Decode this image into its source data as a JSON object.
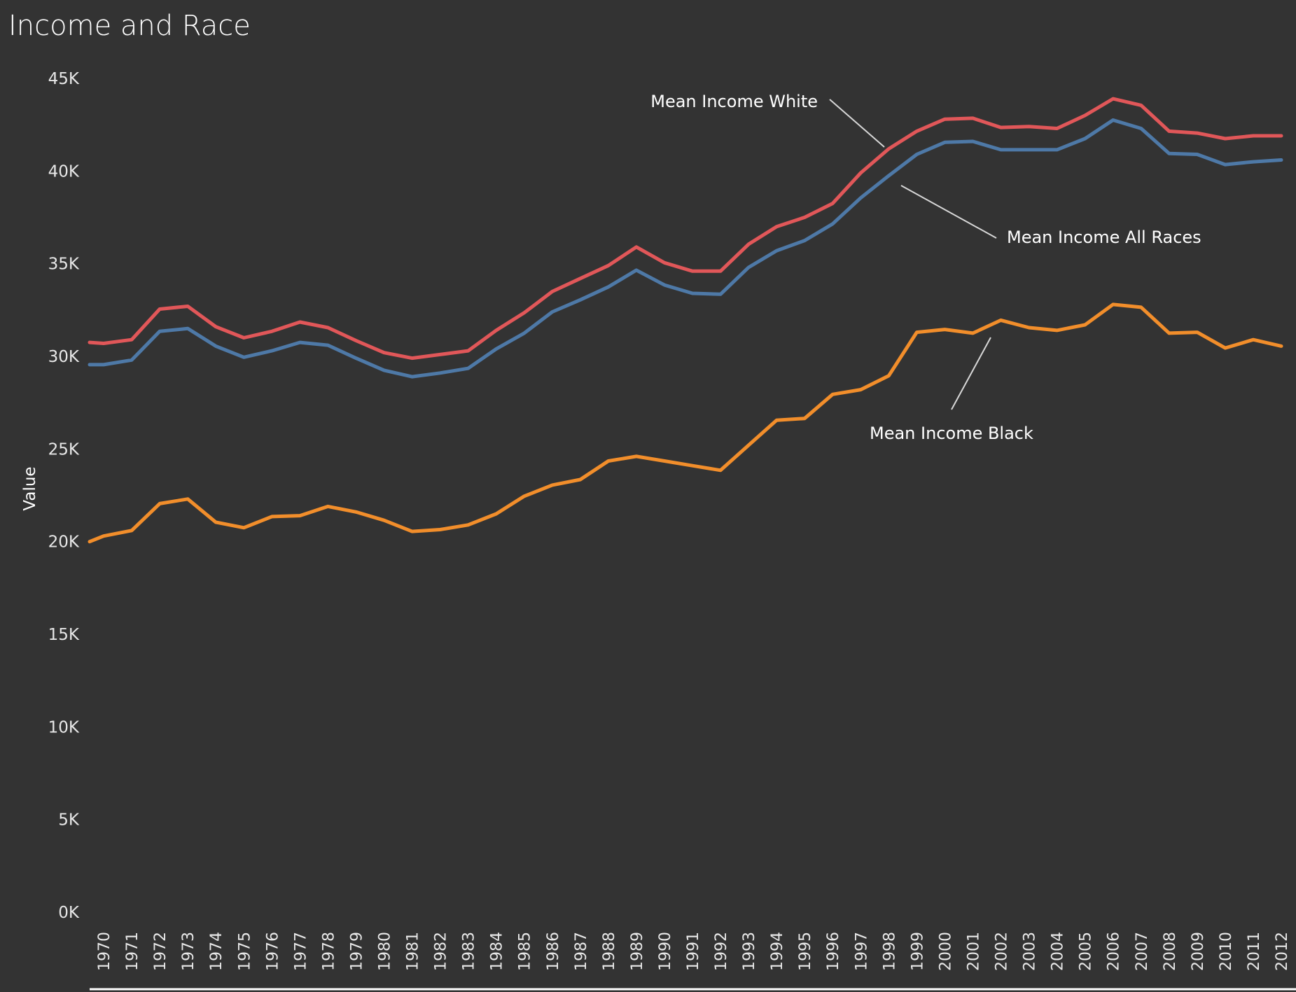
{
  "chart_data": {
    "type": "line",
    "title": "Income and Race",
    "xlabel": "",
    "ylabel": "Value",
    "ylim": [
      0,
      45000
    ],
    "yticks": [
      0,
      5000,
      10000,
      15000,
      20000,
      25000,
      30000,
      35000,
      40000,
      45000
    ],
    "ytick_labels": [
      "0K",
      "5K",
      "10K",
      "15K",
      "20K",
      "25K",
      "30K",
      "35K",
      "40K",
      "45K"
    ],
    "x_tick_labels": [
      "1970",
      "1971",
      "1972",
      "1973",
      "1974",
      "1975",
      "1976",
      "1977",
      "1978",
      "1979",
      "1980",
      "1981",
      "1982",
      "1983",
      "1984",
      "1985",
      "1986",
      "1987",
      "1988",
      "1989",
      "1990",
      "1991",
      "1992",
      "1993",
      "1994",
      "1995",
      "1996",
      "1997",
      "1998",
      "1999",
      "2000",
      "2001",
      "2002",
      "2003",
      "2004",
      "2005",
      "2006",
      "2007",
      "2008",
      "2009",
      "2010",
      "2011",
      "2012"
    ],
    "grid": false,
    "series": [
      {
        "name": "Mean Income White",
        "color": "#e15759",
        "x": [
          1969.5,
          1970,
          1971,
          1972,
          1973,
          1974,
          1975,
          1976,
          1977,
          1978,
          1979,
          1980,
          1981,
          1982,
          1983,
          1984,
          1985,
          1986,
          1987,
          1988,
          1989,
          1990,
          1991,
          1992,
          1993,
          1994,
          1995,
          1996,
          1997,
          1998,
          1999,
          2000,
          2001,
          2002,
          2003,
          2004,
          2005,
          2006,
          2007,
          2008,
          2009,
          2010,
          2011,
          2012
        ],
        "values": [
          30750,
          30700,
          30900,
          32550,
          32700,
          31600,
          31000,
          31350,
          31850,
          31550,
          30850,
          30200,
          29900,
          30100,
          30300,
          31400,
          32350,
          33500,
          34200,
          34900,
          35900,
          35050,
          34600,
          34600,
          36050,
          37000,
          37500,
          38250,
          39900,
          41200,
          42150,
          42800,
          42850,
          42350,
          42400,
          42300,
          43000,
          43900,
          43550,
          42150,
          42050,
          41750,
          41900,
          41900
        ]
      },
      {
        "name": "Mean Income All Races",
        "color": "#4e79a7",
        "x": [
          1969.5,
          1970,
          1971,
          1972,
          1973,
          1974,
          1975,
          1976,
          1977,
          1978,
          1979,
          1980,
          1981,
          1982,
          1983,
          1984,
          1985,
          1986,
          1987,
          1988,
          1989,
          1990,
          1991,
          1992,
          1993,
          1994,
          1995,
          1996,
          1997,
          1998,
          1999,
          2000,
          2001,
          2002,
          2003,
          2004,
          2005,
          2006,
          2007,
          2008,
          2009,
          2010,
          2011,
          2012
        ],
        "values": [
          29550,
          29550,
          29800,
          31350,
          31500,
          30550,
          29950,
          30300,
          30750,
          30600,
          29900,
          29250,
          28900,
          29100,
          29350,
          30400,
          31250,
          32400,
          33050,
          33750,
          34650,
          33850,
          33400,
          33350,
          34800,
          35700,
          36250,
          37150,
          38550,
          39750,
          40900,
          41550,
          41600,
          41150,
          41150,
          41150,
          41750,
          42750,
          42300,
          40950,
          40900,
          40350,
          40500,
          40600
        ]
      },
      {
        "name": "Mean Income Black",
        "color": "#f28e2b",
        "x": [
          1969.5,
          1970,
          1971,
          1972,
          1973,
          1974,
          1975,
          1976,
          1977,
          1978,
          1979,
          1980,
          1981,
          1982,
          1983,
          1984,
          1985,
          1986,
          1987,
          1988,
          1989,
          1990,
          1991,
          1992,
          1993,
          1994,
          1995,
          1996,
          1997,
          1998,
          1999,
          2000,
          2001,
          2002,
          2003,
          2004,
          2005,
          2006,
          2007,
          2008,
          2009,
          2010,
          2011,
          2012
        ],
        "values": [
          20000,
          20300,
          20600,
          22050,
          22300,
          21050,
          20750,
          21350,
          21400,
          21900,
          21600,
          21150,
          20550,
          20650,
          20900,
          21500,
          22450,
          23050,
          23350,
          24350,
          24600,
          24350,
          24100,
          23850,
          25200,
          26550,
          26650,
          27950,
          28200,
          28950,
          31300,
          31450,
          31250,
          31950,
          31550,
          31400,
          31700,
          32800,
          32650,
          31250,
          31300,
          30450,
          30900,
          30550
        ]
      }
    ],
    "annotations": [
      {
        "text": "Mean Income White",
        "series": "Mean Income White"
      },
      {
        "text": "Mean Income All Races",
        "series": "Mean Income All Races"
      },
      {
        "text": "Mean Income Black",
        "series": "Mean Income Black"
      }
    ]
  }
}
